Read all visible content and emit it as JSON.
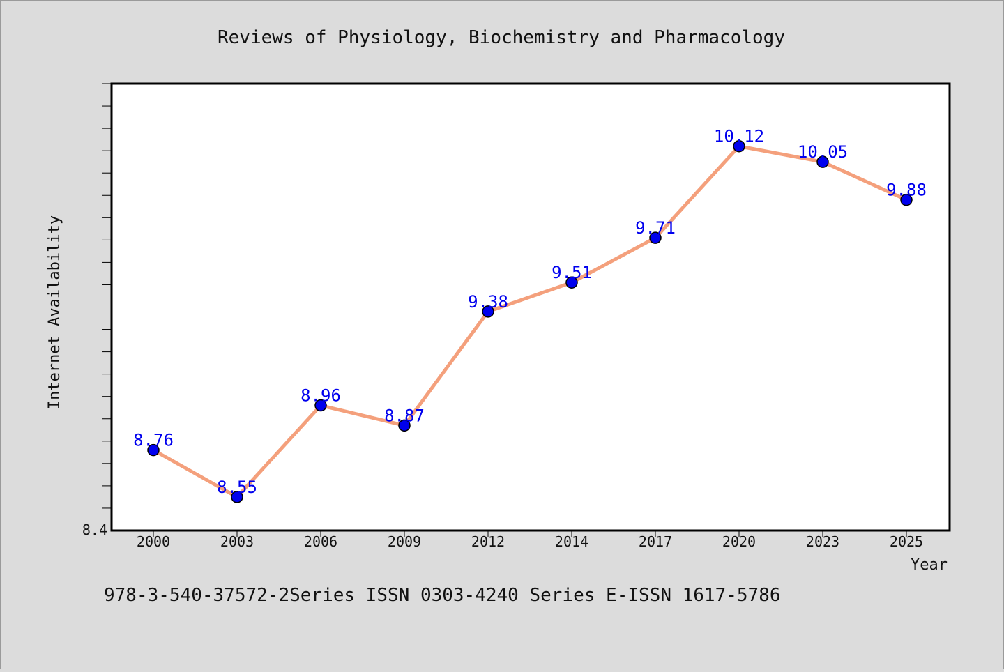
{
  "chart_data": {
    "type": "line",
    "title": "Reviews of Physiology, Biochemistry and Pharmacology",
    "xlabel": "Year",
    "ylabel": "Internet Availability",
    "categories": [
      "2000",
      "2003",
      "2006",
      "2009",
      "2012",
      "2014",
      "2017",
      "2020",
      "2023",
      "2025"
    ],
    "series": [
      {
        "values": [
          8.76,
          8.55,
          8.96,
          8.87,
          9.38,
          9.51,
          9.71,
          10.12,
          10.05,
          9.88
        ]
      }
    ],
    "ylim": [
      8.4,
      10.4
    ],
    "y_tick_labels": [
      "8.4"
    ],
    "grid": false,
    "colors": {
      "line": "#f4a07c",
      "marker": "#0000ee",
      "label": "#0000ee"
    }
  },
  "footer": "978-3-540-37572-2Series ISSN 0303-4240 Series E-ISSN 1617-5786"
}
